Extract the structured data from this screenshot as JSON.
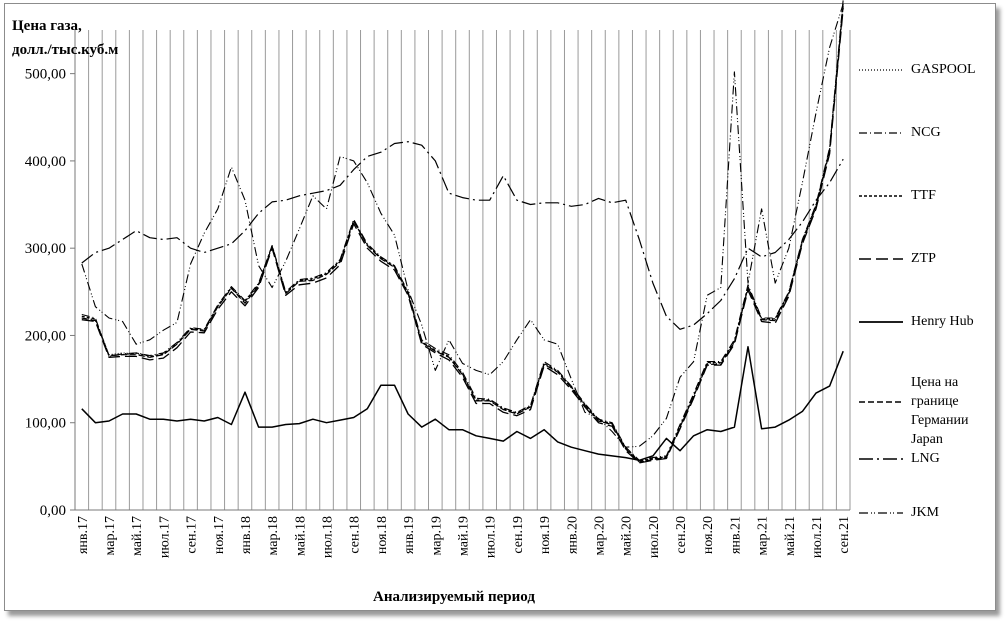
{
  "chart_data": {
    "type": "line",
    "ylabel": "Цена газа,\nдолл./тыс.куб.м",
    "xlabel": "Анализируемый период",
    "ylim": [
      0,
      550
    ],
    "yticks": [
      "0,00",
      "100,00",
      "200,00",
      "300,00",
      "400,00",
      "500,00"
    ],
    "grid": "vertical",
    "legend": "right",
    "x": [
      "янв.17",
      "фев.17",
      "мар.17",
      "апр.17",
      "май.17",
      "июн.17",
      "июл.17",
      "авг.17",
      "сен.17",
      "окт.17",
      "ноя.17",
      "дек.17",
      "янв.18",
      "фев.18",
      "мар.18",
      "апр.18",
      "май.18",
      "июн.18",
      "июл.18",
      "авг.18",
      "сен.18",
      "окт.18",
      "ноя.18",
      "дек.18",
      "янв.19",
      "фев.19",
      "мар.19",
      "апр.19",
      "май.19",
      "июн.19",
      "июл.19",
      "авг.19",
      "сен.19",
      "окт.19",
      "ноя.19",
      "дек.19",
      "янв.20",
      "фев.20",
      "мар.20",
      "апр.20",
      "май.20",
      "июн.20",
      "июл.20",
      "авг.20",
      "сен.20",
      "окт.20",
      "ноя.20",
      "дек.20",
      "янв.21",
      "фев.21",
      "мар.21",
      "апр.21",
      "май.21",
      "июн.21",
      "июл.21",
      "авг.21",
      "сен.21"
    ],
    "xticklabels": [
      "янв.17",
      "мар.17",
      "май.17",
      "июл.17",
      "сен.17",
      "ноя.17",
      "янв.18",
      "мар.18",
      "май.18",
      "июл.18",
      "сен.18",
      "ноя.18",
      "янв.19",
      "мар.19",
      "май.19",
      "июл.19",
      "сен.19",
      "ноя.19",
      "янв.20",
      "мар.20",
      "май.20",
      "июл.20",
      "сен.20",
      "ноя.20",
      "янв.21",
      "мар.21",
      "май.21",
      "июл.21",
      "сен.21"
    ],
    "series": [
      {
        "name": "GASPOOL",
        "style": "dot",
        "values": [
          220,
          218,
          178,
          180,
          179,
          175,
          178,
          190,
          207,
          206,
          233,
          254,
          238,
          258,
          302,
          248,
          262,
          264,
          270,
          285,
          331,
          303,
          288,
          278,
          248,
          192,
          182,
          175,
          155,
          125,
          125,
          115,
          110,
          118,
          167,
          158,
          140,
          120,
          102,
          98,
          70,
          55,
          58,
          60,
          95,
          130,
          168,
          168,
          192,
          255,
          218,
          218,
          248,
          308,
          348,
          412,
          580
        ]
      },
      {
        "name": "NCG",
        "style": "dashdot",
        "values": [
          224,
          220,
          176,
          179,
          180,
          177,
          180,
          192,
          209,
          207,
          235,
          256,
          240,
          260,
          303,
          250,
          264,
          266,
          272,
          287,
          333,
          305,
          290,
          280,
          250,
          195,
          185,
          178,
          158,
          128,
          127,
          117,
          112,
          120,
          170,
          160,
          142,
          122,
          104,
          100,
          72,
          57,
          60,
          62,
          98,
          133,
          170,
          170,
          195,
          258,
          220,
          220,
          250,
          310,
          350,
          415,
          585
        ]
      },
      {
        "name": "TTF",
        "style": "shortdash",
        "values": [
          222,
          219,
          177,
          178,
          180,
          176,
          179,
          191,
          208,
          206,
          234,
          255,
          239,
          259,
          303,
          249,
          263,
          265,
          271,
          286,
          332,
          304,
          289,
          279,
          249,
          193,
          183,
          176,
          156,
          126,
          126,
          116,
          111,
          119,
          168,
          159,
          141,
          121,
          103,
          99,
          71,
          56,
          59,
          61,
          96,
          131,
          169,
          169,
          193,
          256,
          219,
          219,
          249,
          309,
          349,
          413,
          582
        ]
      },
      {
        "name": "ZTP",
        "style": "longdash",
        "values": [
          218,
          216,
          175,
          176,
          176,
          172,
          174,
          186,
          204,
          203,
          230,
          250,
          234,
          255,
          300,
          246,
          258,
          260,
          266,
          281,
          328,
          300,
          285,
          275,
          246,
          190,
          180,
          172,
          152,
          122,
          122,
          112,
          108,
          115,
          165,
          155,
          138,
          118,
          100,
          96,
          68,
          54,
          57,
          59,
          93,
          128,
          166,
          166,
          190,
          252,
          216,
          214,
          245,
          305,
          345,
          408,
          575
        ]
      },
      {
        "name": "Henry Hub",
        "style": "solid",
        "values": [
          116,
          100,
          102,
          110,
          110,
          104,
          104,
          102,
          104,
          102,
          106,
          98,
          135,
          95,
          95,
          98,
          99,
          104,
          100,
          103,
          106,
          116,
          143,
          143,
          110,
          95,
          104,
          92,
          92,
          85,
          82,
          79,
          90,
          82,
          92,
          78,
          72,
          68,
          64,
          62,
          60,
          57,
          62,
          82,
          68,
          85,
          92,
          90,
          95,
          187,
          93,
          95,
          103,
          113,
          134,
          142,
          182
        ]
      },
      {
        "name": "Цена на\nгранице\nГермании",
        "style": "dashed",
        "values": [
          220,
          217,
          177,
          178,
          178,
          175,
          178,
          190,
          207,
          205,
          233,
          254,
          237,
          257,
          302,
          248,
          262,
          263,
          270,
          284,
          331,
          303,
          288,
          278,
          248,
          192,
          182,
          175,
          155,
          125,
          125,
          115,
          110,
          118,
          167,
          158,
          140,
          120,
          102,
          98,
          70,
          55,
          58,
          60,
          95,
          130,
          167,
          167,
          192,
          255,
          218,
          217,
          247,
          307,
          347,
          411,
          578
        ]
      },
      {
        "name": "Japan\nLNG",
        "style": "longdash2",
        "values": [
          283,
          295,
          300,
          310,
          320,
          312,
          310,
          312,
          300,
          295,
          300,
          305,
          320,
          340,
          353,
          355,
          360,
          363,
          366,
          372,
          390,
          405,
          410,
          420,
          422,
          418,
          400,
          363,
          358,
          355,
          355,
          383,
          355,
          350,
          352,
          352,
          348,
          350,
          357,
          352,
          355,
          310,
          260,
          222,
          207,
          212,
          225,
          240,
          265,
          300,
          290,
          295,
          310,
          330,
          355,
          375,
          402
        ]
      },
      {
        "name": "JKM",
        "style": "dashdotdot",
        "values": [
          282,
          233,
          220,
          216,
          190,
          195,
          206,
          215,
          282,
          317,
          345,
          393,
          355,
          280,
          255,
          285,
          322,
          360,
          345,
          405,
          400,
          375,
          340,
          315,
          252,
          212,
          160,
          195,
          168,
          160,
          155,
          170,
          195,
          218,
          195,
          190,
          150,
          112,
          105,
          90,
          72,
          73,
          85,
          105,
          152,
          170,
          246,
          255,
          502,
          260,
          345,
          260,
          300,
          375,
          455,
          530,
          580
        ]
      }
    ]
  }
}
